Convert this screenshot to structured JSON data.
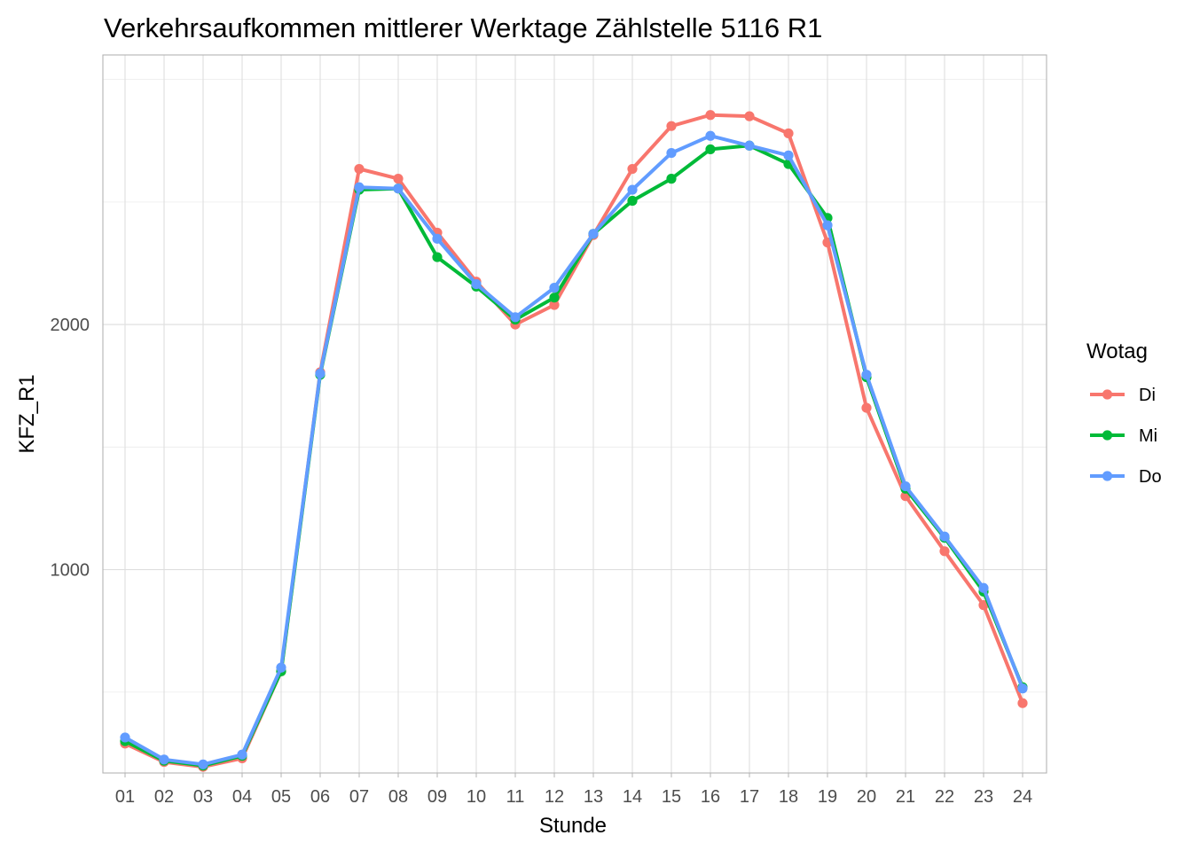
{
  "chart_data": {
    "type": "line",
    "title": "Verkehrsaufkommen mittlerer Werktage Zählstelle 5116 R1",
    "xlabel": "Stunde",
    "ylabel": "KFZ_R1",
    "categories": [
      "01",
      "02",
      "03",
      "04",
      "05",
      "06",
      "07",
      "08",
      "09",
      "10",
      "11",
      "12",
      "13",
      "14",
      "15",
      "16",
      "17",
      "18",
      "19",
      "20",
      "21",
      "22",
      "23",
      "24"
    ],
    "ylim": [
      170,
      3100
    ],
    "yticks": [
      1000,
      2000
    ],
    "grid": true,
    "legend": {
      "title": "Wotag",
      "position": "right"
    },
    "series": [
      {
        "name": "Di",
        "color": "#F8766D",
        "values": [
          290,
          215,
          195,
          230,
          585,
          1805,
          2635,
          2595,
          2375,
          2175,
          2000,
          2080,
          2365,
          2635,
          2810,
          2855,
          2850,
          2780,
          2335,
          1660,
          1300,
          1075,
          855,
          455
        ]
      },
      {
        "name": "Mi",
        "color": "#00BA38",
        "values": [
          300,
          220,
          200,
          240,
          585,
          1795,
          2550,
          2555,
          2275,
          2155,
          2020,
          2110,
          2370,
          2505,
          2595,
          2715,
          2730,
          2655,
          2435,
          1785,
          1330,
          1130,
          910,
          520
        ]
      },
      {
        "name": "Do",
        "color": "#619CFF",
        "values": [
          315,
          225,
          205,
          245,
          600,
          1800,
          2560,
          2555,
          2350,
          2165,
          2030,
          2150,
          2370,
          2550,
          2700,
          2770,
          2730,
          2690,
          2405,
          1795,
          1340,
          1135,
          925,
          515
        ]
      }
    ]
  }
}
